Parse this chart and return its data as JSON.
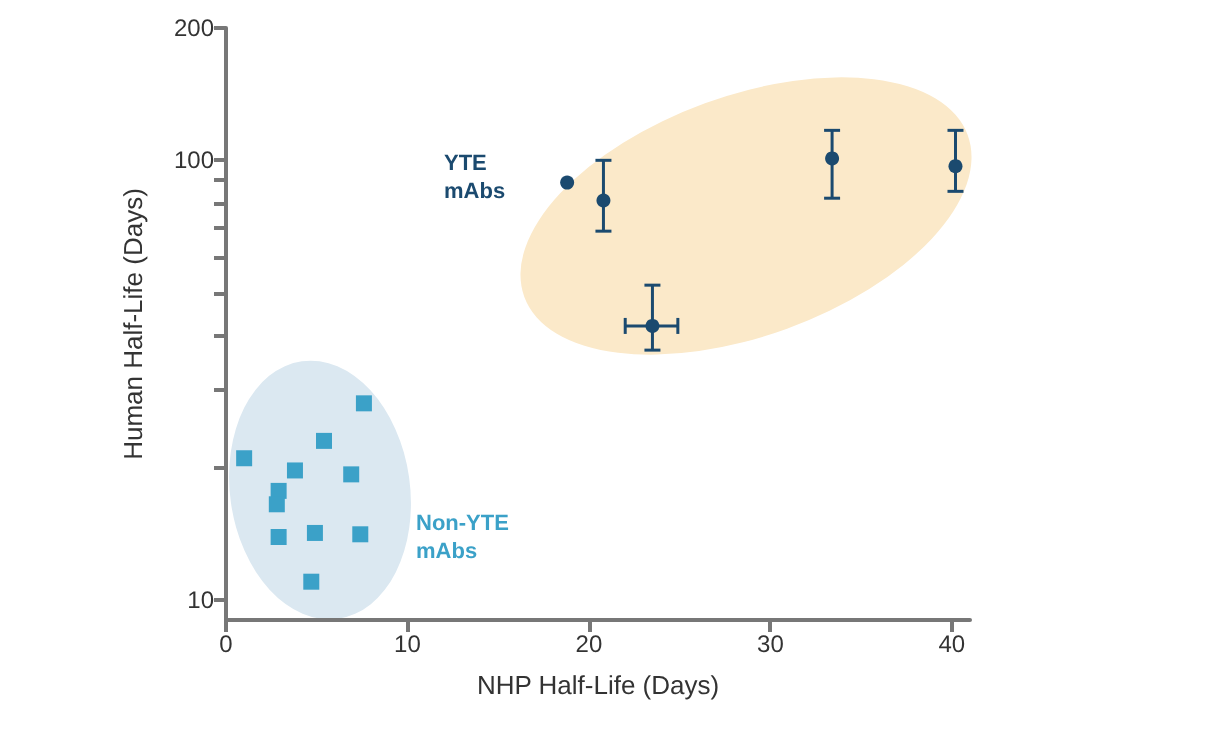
{
  "chart_data": {
    "type": "scatter",
    "xlabel": "NHP Half-Life (Days)",
    "ylabel": "Human Half-Life (Days)",
    "log": "y",
    "grid": false,
    "legend": false,
    "xlim": [
      0,
      41
    ],
    "xticks": [
      0,
      10,
      20,
      30,
      40
    ],
    "ylim": [
      9,
      200
    ],
    "yticks": [
      10,
      {
        "value": 20,
        "label": null
      },
      {
        "value": 30,
        "label": null
      },
      {
        "value": 40,
        "label": null
      },
      {
        "value": 50,
        "label": null
      },
      {
        "value": 60,
        "label": null
      },
      {
        "value": 70,
        "label": null
      },
      {
        "value": 80,
        "label": null
      },
      {
        "value": 90,
        "label": null
      },
      100,
      200
    ],
    "series": [
      {
        "name": "YTE mAbs",
        "color": "#1b4a6f",
        "marker": "circle",
        "x": [
          18.8,
          20.8,
          23.5,
          33.4,
          40.2
        ],
        "values": [
          89,
          81,
          42,
          101,
          97
        ],
        "errors": [
          null,
          [
            69,
            100
          ],
          [
            37,
            52
          ],
          [
            82,
            117
          ],
          [
            85,
            117
          ]
        ],
        "xerrors": [
          null,
          null,
          [
            22.0,
            24.9
          ],
          null,
          null
        ]
      },
      {
        "name": "Non-YTE mAbs",
        "color": "#3ba1c8",
        "marker": "square",
        "x": [
          7.6,
          5.4,
          1.0,
          3.8,
          6.9,
          2.9,
          2.8,
          2.9,
          4.9,
          7.4,
          4.7
        ],
        "values": [
          28,
          23,
          21,
          19.7,
          19.3,
          17.7,
          16.5,
          13.9,
          14.2,
          14.1,
          11.0
        ]
      }
    ]
  }
}
